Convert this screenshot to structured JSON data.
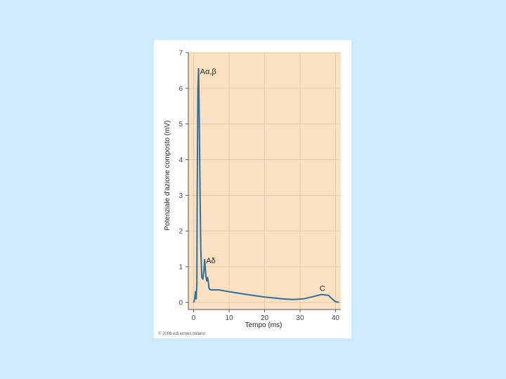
{
  "colors": {
    "background": "#cdeaff",
    "plot_area": "#fbe0c1",
    "grid": "#e6c9a6",
    "line": "#2f6f9a"
  },
  "copyright": "© 2006 edi.ermes milano",
  "chart_data": {
    "type": "line",
    "xlabel": "Tempo (ms)",
    "ylabel": "Potenziale d'azione composto (mV)",
    "xlim": [
      -1.5,
      41.5
    ],
    "ylim": [
      -0.2,
      7
    ],
    "x_ticks": [
      0,
      10,
      20,
      30,
      40
    ],
    "y_ticks": [
      0,
      1,
      2,
      3,
      4,
      5,
      6,
      7
    ],
    "grid": true,
    "annotations": [
      {
        "text": "Aα,β",
        "x": 1.8,
        "y": 6.4
      },
      {
        "text": "Aδ",
        "x": 3.5,
        "y": 1.1
      },
      {
        "text": "C",
        "x": 35.5,
        "y": 0.32
      }
    ],
    "series": [
      {
        "x": [
          0,
          0.3,
          0.5,
          0.7,
          0.9,
          1.0,
          1.2,
          1.4,
          1.6,
          1.8,
          2.0,
          2.3,
          2.6,
          2.9,
          3.1,
          3.3,
          3.5,
          3.7,
          3.9,
          4.1,
          4.3,
          4.6,
          5,
          7,
          10,
          15,
          20,
          25,
          28,
          31,
          34,
          36,
          38,
          39,
          40,
          41
        ],
        "y": [
          0,
          0.1,
          0.3,
          0.1,
          0.5,
          3.0,
          6.0,
          6.55,
          5.0,
          3.0,
          1.5,
          0.7,
          0.65,
          0.9,
          1.2,
          0.95,
          0.7,
          0.6,
          0.7,
          0.6,
          0.4,
          0.36,
          0.35,
          0.35,
          0.3,
          0.22,
          0.15,
          0.1,
          0.08,
          0.1,
          0.17,
          0.22,
          0.2,
          0.1,
          0.02,
          0.0
        ]
      }
    ]
  }
}
